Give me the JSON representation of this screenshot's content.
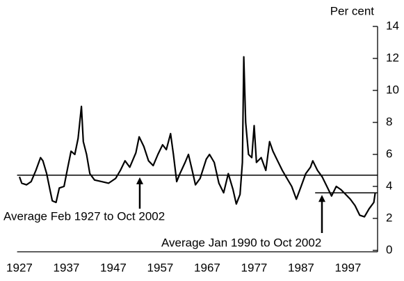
{
  "chart_data": {
    "type": "line",
    "y_axis_label": "Per cent",
    "color": "#000000",
    "x": [
      1927.0,
      1927.5,
      1928.5,
      1929.5,
      1930.5,
      1931.5,
      1932.0,
      1932.8,
      1933.5,
      1934.0,
      1934.8,
      1935.5,
      1936.5,
      1937.3,
      1938.0,
      1938.8,
      1939.5,
      1940.2,
      1940.6,
      1941.3,
      1942.0,
      1943.0,
      1944.5,
      1946.0,
      1947.5,
      1948.5,
      1949.5,
      1950.5,
      1951.8,
      1952.5,
      1953.5,
      1954.5,
      1955.5,
      1956.5,
      1957.5,
      1958.3,
      1959.2,
      1959.8,
      1960.5,
      1961.2,
      1962.3,
      1963.0,
      1963.8,
      1964.5,
      1965.5,
      1966.8,
      1967.5,
      1968.5,
      1969.5,
      1970.5,
      1971.5,
      1972.5,
      1973.2,
      1974.0,
      1974.5,
      1974.8,
      1975.2,
      1975.8,
      1976.5,
      1977.0,
      1977.5,
      1978.5,
      1979.5,
      1980.3,
      1981.0,
      1982.0,
      1983.0,
      1984.0,
      1985.0,
      1986.0,
      1987.0,
      1988.0,
      1989.0,
      1989.5,
      1990.5,
      1991.5,
      1992.5,
      1993.5,
      1994.5,
      1995.5,
      1996.5,
      1997.5,
      1998.5,
      1999.5,
      2000.5,
      2001.5,
      2002.5,
      2002.8
    ],
    "values": [
      4.6,
      4.2,
      4.1,
      4.3,
      5.0,
      5.8,
      5.6,
      4.8,
      3.8,
      3.1,
      3.0,
      3.9,
      4.0,
      5.2,
      6.2,
      6.0,
      7.0,
      9.0,
      6.8,
      6.0,
      4.8,
      4.4,
      4.3,
      4.2,
      4.5,
      5.0,
      5.6,
      5.2,
      6.1,
      7.1,
      6.5,
      5.6,
      5.3,
      6.0,
      6.6,
      6.3,
      7.3,
      6.0,
      4.3,
      4.8,
      5.5,
      6.0,
      5.0,
      4.1,
      4.5,
      5.7,
      6.0,
      5.5,
      4.2,
      3.6,
      4.8,
      3.8,
      2.9,
      3.5,
      5.5,
      12.1,
      8.0,
      6.0,
      5.8,
      7.8,
      5.5,
      5.8,
      5.0,
      6.8,
      6.2,
      5.6,
      5.0,
      4.5,
      4.0,
      3.2,
      4.0,
      4.8,
      5.2,
      5.6,
      5.0,
      4.6,
      4.0,
      3.4,
      4.0,
      3.8,
      3.5,
      3.2,
      2.8,
      2.2,
      2.1,
      2.6,
      3.0,
      3.6
    ],
    "xlim": [
      1926.5,
      2003.2
    ],
    "xticks": [
      1927,
      1937,
      1947,
      1957,
      1967,
      1977,
      1987,
      1997
    ],
    "ylim": [
      0,
      14
    ],
    "yticks": [
      0,
      2,
      4,
      6,
      8,
      10,
      12,
      14
    ],
    "reference_lines": [
      {
        "value": 4.7,
        "label": "Average Feb 1927 to Oct 2002"
      },
      {
        "value": 3.6,
        "x_start": 1990,
        "label": "Average Jan 1990 to Oct 2002"
      }
    ]
  }
}
